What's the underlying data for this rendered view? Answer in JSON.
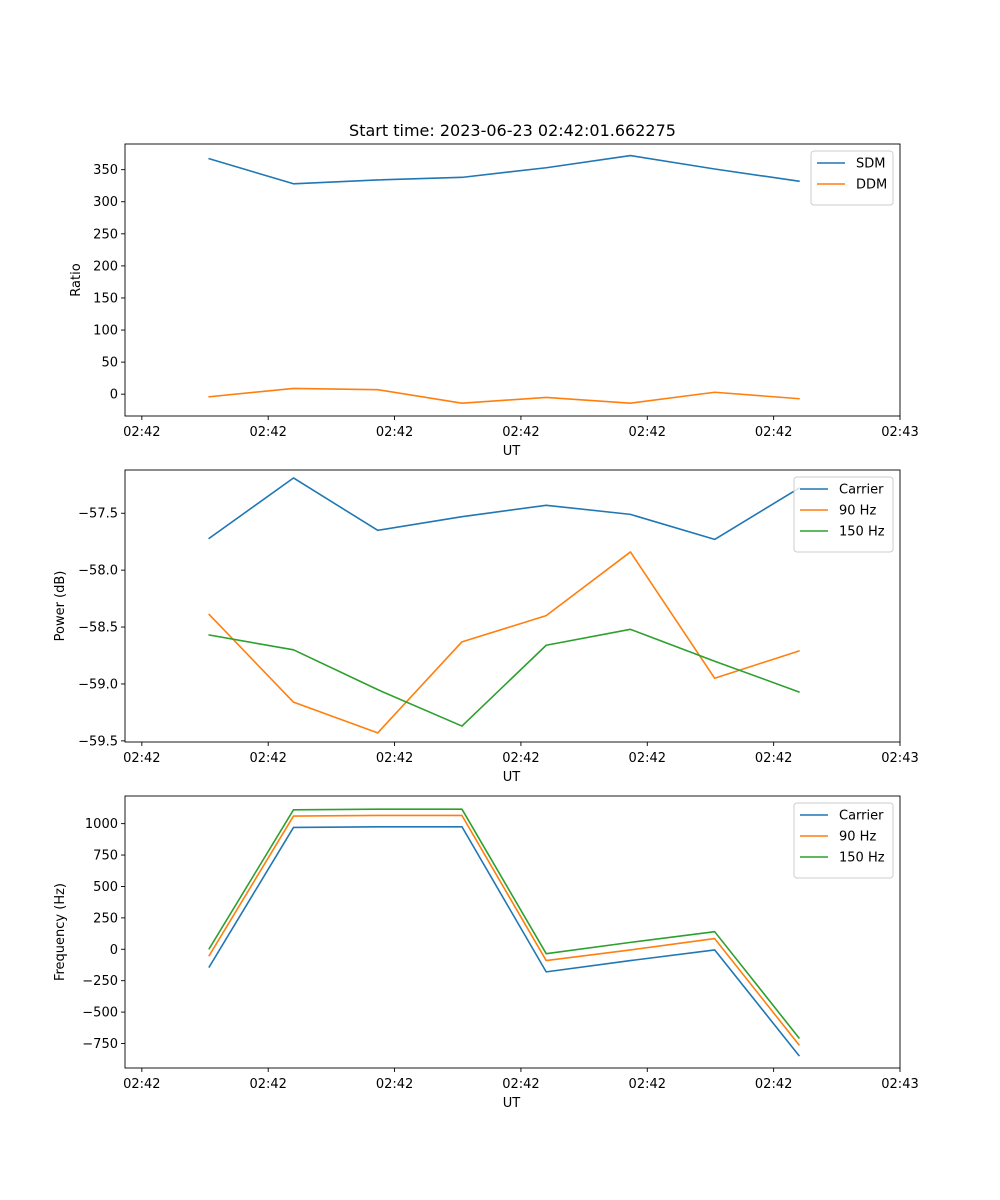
{
  "figure": {
    "title": "Start time: 2023-06-23 02:42:01.662275"
  },
  "chart_data": [
    {
      "type": "line",
      "xlabel": "UT",
      "ylabel": "Ratio",
      "xlim": [
        0,
        9.2
      ],
      "x_ticks": [
        0.2,
        1.7,
        3.2,
        4.7,
        6.2,
        7.7,
        9.2
      ],
      "x_tick_labels": [
        "02:42",
        "02:42",
        "02:42",
        "02:42",
        "02:42",
        "02:42",
        "02:43"
      ],
      "ylim": [
        -34,
        390
      ],
      "y_ticks": [
        0,
        50,
        100,
        150,
        200,
        250,
        300,
        350
      ],
      "x": [
        1,
        2,
        3,
        4,
        5,
        6,
        7,
        8
      ],
      "series": [
        {
          "name": "SDM",
          "color": "#1f77b4",
          "values": [
            367,
            328,
            334,
            338,
            353,
            372,
            351,
            332
          ]
        },
        {
          "name": "DDM",
          "color": "#ff7f0e",
          "values": [
            -4,
            9,
            7,
            -14,
            -5,
            -14,
            3,
            -7
          ]
        }
      ],
      "legend": "top-right",
      "grid": false
    },
    {
      "type": "line",
      "xlabel": "UT",
      "ylabel": "Power (dB)",
      "xlim": [
        0,
        9.2
      ],
      "x_ticks": [
        0.2,
        1.7,
        3.2,
        4.7,
        6.2,
        7.7,
        9.2
      ],
      "x_tick_labels": [
        "02:42",
        "02:42",
        "02:42",
        "02:42",
        "02:42",
        "02:42",
        "02:43"
      ],
      "ylim": [
        -59.51,
        -57.12
      ],
      "y_ticks": [
        -59.5,
        -59.0,
        -58.5,
        -58.0,
        -57.5
      ],
      "y_tick_labels": [
        "−59.5",
        "−59.0",
        "−58.5",
        "−58.0",
        "−57.5"
      ],
      "x": [
        1,
        2,
        3,
        4,
        5,
        6,
        7,
        8
      ],
      "series": [
        {
          "name": "Carrier",
          "color": "#1f77b4",
          "values": [
            -57.72,
            -57.19,
            -57.65,
            -57.53,
            -57.43,
            -57.51,
            -57.73,
            -57.28
          ]
        },
        {
          "name": "90 Hz",
          "color": "#ff7f0e",
          "values": [
            -58.39,
            -59.16,
            -59.43,
            -58.63,
            -58.4,
            -57.84,
            -58.95,
            -58.71
          ]
        },
        {
          "name": "150 Hz",
          "color": "#2ca02c",
          "values": [
            -58.57,
            -58.7,
            -59.05,
            -59.37,
            -58.66,
            -58.52,
            -58.8,
            -59.07
          ]
        }
      ],
      "legend": "top-right",
      "grid": false
    },
    {
      "type": "line",
      "xlabel": "UT",
      "ylabel": "Frequency (Hz)",
      "xlim": [
        0,
        9.2
      ],
      "x_ticks": [
        0.2,
        1.7,
        3.2,
        4.7,
        6.2,
        7.7,
        9.2
      ],
      "x_tick_labels": [
        "02:42",
        "02:42",
        "02:42",
        "02:42",
        "02:42",
        "02:42",
        "02:43"
      ],
      "ylim": [
        -945,
        1220
      ],
      "y_ticks": [
        -750,
        -500,
        -250,
        0,
        250,
        500,
        750,
        1000
      ],
      "y_tick_labels": [
        "−750",
        "−500",
        "−250",
        "0",
        "250",
        "500",
        "750",
        "1000"
      ],
      "x": [
        1,
        2,
        3,
        4,
        5,
        6,
        7,
        8
      ],
      "series": [
        {
          "name": "Carrier",
          "color": "#1f77b4",
          "values": [
            -140,
            970,
            975,
            975,
            -180,
            -90,
            -5,
            -845
          ]
        },
        {
          "name": "90 Hz",
          "color": "#ff7f0e",
          "values": [
            -50,
            1060,
            1065,
            1065,
            -90,
            -5,
            85,
            -760
          ]
        },
        {
          "name": "150 Hz",
          "color": "#2ca02c",
          "values": [
            5,
            1110,
            1115,
            1115,
            -35,
            55,
            140,
            -705
          ]
        }
      ],
      "legend": "top-right",
      "grid": false
    }
  ]
}
